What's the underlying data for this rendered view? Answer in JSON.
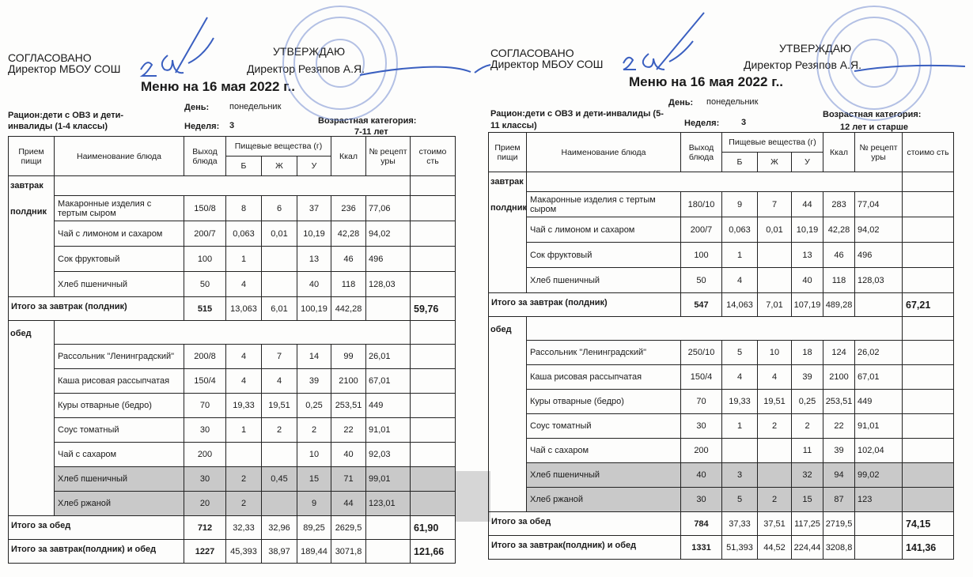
{
  "menus": [
    {
      "agreed": "СОГЛАСОВАНО",
      "agreed_by": "Директор МБОУ СОШ",
      "approve": "УТВЕРЖДАЮ",
      "approve_by": "Директор Резяпов А.Я.",
      "title": "Меню на 16  мая   2022 г..",
      "ration_1": "Рацион:дети с ОВЗ и дети-",
      "ration_2": "инвалиды (1-4 классы)",
      "day_label": "День:",
      "day": "понедельник",
      "week_label": "Неделя:",
      "week": "3",
      "age_label": "Возрастная категория:",
      "age": "7-11 лет",
      "headers": {
        "meal": "Прием пищи",
        "dish": "Наименование блюда",
        "yield": "Выход блюда",
        "nutrients": "Пищевые вещества (г)",
        "b": "Б",
        "zh": "Ж",
        "u": "У",
        "kcal": "Ккал",
        "recipe": "№ рецепт уры",
        "cost": "стоимо сть"
      },
      "sections": [
        {
          "meal": "завтрак",
          "meal2": "полдник",
          "items": [
            {
              "name": "Макаронные изделия с тертым сыром",
              "yield": "150/8",
              "b": "8",
              "zh": "6",
              "u": "37",
              "kcal": "236",
              "recipe": "77,06"
            },
            {
              "name": "Чай с лимоном и сахаром",
              "yield": "200/7",
              "b": "0,063",
              "zh": "0,01",
              "u": "10,19",
              "kcal": "42,28",
              "recipe": "94,02"
            },
            {
              "name": "Сок фруктовый",
              "yield": "100",
              "b": "1",
              "zh": "",
              "u": "13",
              "kcal": "46",
              "recipe": "496"
            },
            {
              "name": "Хлеб пшеничный",
              "yield": "50",
              "b": "4",
              "zh": "",
              "u": "40",
              "kcal": "118",
              "recipe": "128,03"
            }
          ],
          "total": {
            "label": "Итого за завтрак (полдник)",
            "yield": "515",
            "b": "13,063",
            "zh": "6,01",
            "u": "100,19",
            "kcal": "442,28",
            "cost": "59,76"
          }
        },
        {
          "meal": "обед",
          "meal2": "",
          "items": [
            {
              "name": "Рассольник \"Ленинградский\"",
              "yield": "200/8",
              "b": "4",
              "zh": "7",
              "u": "14",
              "kcal": "99",
              "recipe": "26,01"
            },
            {
              "name": "Каша рисовая рассыпчатая",
              "yield": "150/4",
              "b": "4",
              "zh": "4",
              "u": "39",
              "kcal": "2100",
              "recipe": "67,01"
            },
            {
              "name": "Куры отварные (бедро)",
              "yield": "70",
              "b": "19,33",
              "zh": "19,51",
              "u": "0,25",
              "kcal": "253,51",
              "recipe": "449"
            },
            {
              "name": "Соус томатный",
              "yield": "30",
              "b": "1",
              "zh": "2",
              "u": "2",
              "kcal": "22",
              "recipe": "91,01"
            },
            {
              "name": "Чай с сахаром",
              "yield": "200",
              "b": "",
              "zh": "",
              "u": "10",
              "kcal": "40",
              "recipe": "92,03"
            },
            {
              "name": "Хлеб пшеничный",
              "yield": "30",
              "b": "2",
              "zh": "0,45",
              "u": "15",
              "kcal": "71",
              "recipe": "99,01",
              "shaded": true
            },
            {
              "name": "Хлеб ржаной",
              "yield": "20",
              "b": "2",
              "zh": "",
              "u": "9",
              "kcal": "44",
              "recipe": "123,01",
              "shaded": true
            }
          ],
          "total": {
            "label": "Итого за обед",
            "yield": "712",
            "b": "32,33",
            "zh": "32,96",
            "u": "89,25",
            "kcal": "2629,5",
            "cost": "61,90"
          }
        }
      ],
      "grand_total": {
        "label": "Итого за завтрак(полдник) и обед",
        "yield": "1227",
        "b": "45,393",
        "zh": "38,97",
        "u": "189,44",
        "kcal": "3071,8",
        "cost": "121,66"
      }
    },
    {
      "agreed": "СОГЛАСОВАНО",
      "agreed_by": "Директор МБОУ СОШ",
      "approve": "УТВЕРЖДАЮ",
      "approve_by": "Директор Резяпов А.Я.",
      "title": "Меню на 16 мая  2022 г..",
      "ration_1": "Рацион:дети с ОВЗ и дети-инвалиды (5-",
      "ration_2": "11 классы)",
      "day_label": "День:",
      "day": "понедельник",
      "week_label": "Неделя:",
      "week": "3",
      "age_label": "Возрастная категория:",
      "age": "12 лет и старше",
      "headers": {
        "meal": "Прием пищи",
        "dish": "Наименование блюда",
        "yield": "Выход блюда",
        "nutrients": "Пищевые вещества (г)",
        "b": "Б",
        "zh": "Ж",
        "u": "У",
        "kcal": "Ккал",
        "recipe": "№ рецепт уры",
        "cost": "стоимо сть"
      },
      "sections": [
        {
          "meal": "завтрак",
          "meal2": "полдник",
          "items": [
            {
              "name": "Макаронные изделия с тертым сыром",
              "yield": "180/10",
              "b": "9",
              "zh": "7",
              "u": "44",
              "kcal": "283",
              "recipe": "77,04"
            },
            {
              "name": "Чай с лимоном и сахаром",
              "yield": "200/7",
              "b": "0,063",
              "zh": "0,01",
              "u": "10,19",
              "kcal": "42,28",
              "recipe": "94,02"
            },
            {
              "name": "Сок фруктовый",
              "yield": "100",
              "b": "1",
              "zh": "",
              "u": "13",
              "kcal": "46",
              "recipe": "496"
            },
            {
              "name": "Хлеб пшеничный",
              "yield": "50",
              "b": "4",
              "zh": "",
              "u": "40",
              "kcal": "118",
              "recipe": "128,03"
            }
          ],
          "total": {
            "label": "Итого за завтрак (полдник)",
            "yield": "547",
            "b": "14,063",
            "zh": "7,01",
            "u": "107,19",
            "kcal": "489,28",
            "cost": "67,21"
          }
        },
        {
          "meal": "обед",
          "meal2": "",
          "items": [
            {
              "name": "Рассольник \"Ленинградский\"",
              "yield": "250/10",
              "b": "5",
              "zh": "10",
              "u": "18",
              "kcal": "124",
              "recipe": "26,02"
            },
            {
              "name": "Каша рисовая рассыпчатая",
              "yield": "150/4",
              "b": "4",
              "zh": "4",
              "u": "39",
              "kcal": "2100",
              "recipe": "67,01"
            },
            {
              "name": "Куры отварные (бедро)",
              "yield": "70",
              "b": "19,33",
              "zh": "19,51",
              "u": "0,25",
              "kcal": "253,51",
              "recipe": "449"
            },
            {
              "name": "Соус томатный",
              "yield": "30",
              "b": "1",
              "zh": "2",
              "u": "2",
              "kcal": "22",
              "recipe": "91,01"
            },
            {
              "name": "Чай с сахаром",
              "yield": "200",
              "b": "",
              "zh": "",
              "u": "11",
              "kcal": "39",
              "recipe": "102,04"
            },
            {
              "name": "Хлеб пшеничный",
              "yield": "40",
              "b": "3",
              "zh": "",
              "u": "32",
              "kcal": "94",
              "recipe": "99,02",
              "shaded": true
            },
            {
              "name": "Хлеб ржаной",
              "yield": "30",
              "b": "5",
              "zh": "2",
              "u": "15",
              "kcal": "87",
              "recipe": "123",
              "shaded": true
            }
          ],
          "total": {
            "label": "Итого за обед",
            "yield": "784",
            "b": "37,33",
            "zh": "37,51",
            "u": "117,25",
            "kcal": "2719,5",
            "cost": "74,15"
          }
        }
      ],
      "grand_total": {
        "label": "Итого за завтрак(полдник) и обед",
        "yield": "1331",
        "b": "51,393",
        "zh": "44,52",
        "u": "224,44",
        "kcal": "3208,8",
        "cost": "141,36"
      }
    }
  ],
  "colors": {
    "ink": "#1a1a1a",
    "stamp": "#5a78c8",
    "signature": "#3a5fc0",
    "shade": "#c9c9c9"
  }
}
